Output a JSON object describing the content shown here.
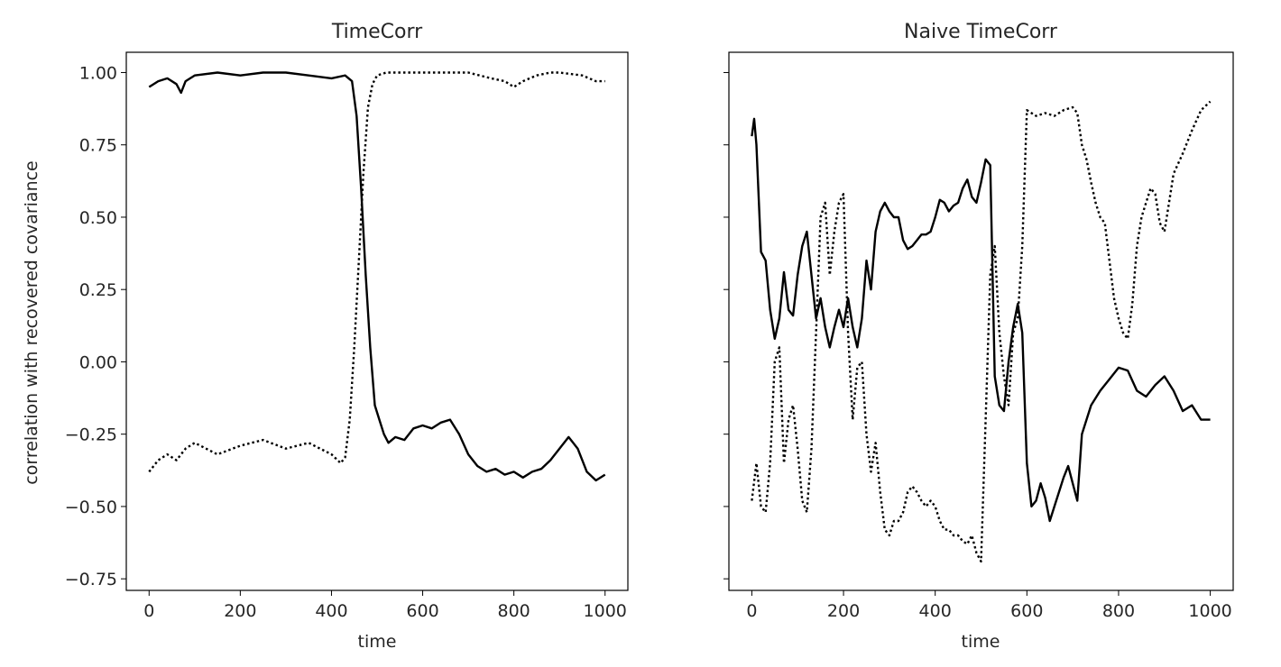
{
  "figure": {
    "panels": [
      {
        "title": "TimeCorr",
        "xlabel": "time",
        "ylabel": "correlation with recovered covariance"
      },
      {
        "title": "Naive TimeCorr",
        "xlabel": "time",
        "ylabel": ""
      }
    ]
  },
  "chart_data": [
    {
      "type": "line",
      "title": "TimeCorr",
      "xlabel": "time",
      "ylabel": "correlation with recovered covariance",
      "xlim": [
        -50,
        1050
      ],
      "ylim": [
        -0.75,
        1.0
      ],
      "xticks": [
        0,
        200,
        400,
        600,
        800,
        1000
      ],
      "yticks": [
        -0.75,
        -0.5,
        -0.25,
        0.0,
        0.25,
        0.5,
        0.75,
        1.0
      ],
      "ytick_labels": [
        "−0.75",
        "−0.50",
        "−0.25",
        "0.00",
        "0.25",
        "0.50",
        "0.75",
        "1.00"
      ],
      "grid": false,
      "series": [
        {
          "style": "solid",
          "color": "#000000",
          "x": [
            0,
            20,
            40,
            60,
            70,
            80,
            90,
            100,
            150,
            200,
            250,
            300,
            350,
            400,
            430,
            445,
            455,
            465,
            475,
            485,
            495,
            505,
            515,
            525,
            540,
            560,
            580,
            600,
            620,
            640,
            660,
            680,
            700,
            720,
            740,
            760,
            780,
            800,
            820,
            840,
            860,
            880,
            900,
            920,
            940,
            960,
            980,
            1000
          ],
          "y": [
            0.95,
            0.97,
            0.98,
            0.96,
            0.93,
            0.97,
            0.98,
            0.99,
            1.0,
            0.99,
            1.0,
            1.0,
            0.99,
            0.98,
            0.99,
            0.97,
            0.85,
            0.6,
            0.3,
            0.05,
            -0.15,
            -0.2,
            -0.25,
            -0.28,
            -0.26,
            -0.27,
            -0.23,
            -0.22,
            -0.23,
            -0.21,
            -0.2,
            -0.25,
            -0.32,
            -0.36,
            -0.38,
            -0.37,
            -0.39,
            -0.38,
            -0.4,
            -0.38,
            -0.37,
            -0.34,
            -0.3,
            -0.26,
            -0.3,
            -0.38,
            -0.41,
            -0.39
          ]
        },
        {
          "style": "dotted",
          "color": "#000000",
          "x": [
            0,
            20,
            40,
            60,
            80,
            100,
            150,
            200,
            250,
            300,
            350,
            400,
            420,
            430,
            440,
            450,
            460,
            470,
            480,
            490,
            500,
            520,
            560,
            600,
            650,
            700,
            750,
            780,
            800,
            820,
            850,
            880,
            900,
            950,
            980,
            1000
          ],
          "y": [
            -0.38,
            -0.34,
            -0.32,
            -0.34,
            -0.3,
            -0.28,
            -0.32,
            -0.29,
            -0.27,
            -0.3,
            -0.28,
            -0.32,
            -0.35,
            -0.33,
            -0.2,
            0.05,
            0.35,
            0.65,
            0.88,
            0.96,
            0.99,
            1.0,
            1.0,
            1.0,
            1.0,
            1.0,
            0.98,
            0.97,
            0.95,
            0.97,
            0.99,
            1.0,
            1.0,
            0.99,
            0.97,
            0.97
          ]
        }
      ]
    },
    {
      "type": "line",
      "title": "Naive TimeCorr",
      "xlabel": "time",
      "ylabel": "",
      "xlim": [
        -50,
        1050
      ],
      "ylim": [
        -0.75,
        1.0
      ],
      "xticks": [
        0,
        200,
        400,
        600,
        800,
        1000
      ],
      "yticks": [
        -0.75,
        -0.5,
        -0.25,
        0.0,
        0.25,
        0.5,
        0.75,
        1.0
      ],
      "grid": false,
      "series": [
        {
          "style": "solid",
          "color": "#000000",
          "x": [
            0,
            5,
            10,
            20,
            30,
            40,
            50,
            60,
            70,
            80,
            90,
            100,
            110,
            120,
            130,
            140,
            150,
            160,
            170,
            180,
            190,
            200,
            210,
            220,
            230,
            240,
            250,
            260,
            270,
            280,
            290,
            300,
            310,
            320,
            330,
            340,
            350,
            360,
            370,
            380,
            390,
            400,
            410,
            420,
            430,
            440,
            450,
            460,
            470,
            480,
            490,
            500,
            510,
            520,
            530,
            540,
            550,
            560,
            570,
            580,
            590,
            600,
            610,
            620,
            630,
            640,
            650,
            660,
            670,
            680,
            690,
            700,
            710,
            720,
            740,
            760,
            780,
            800,
            820,
            840,
            860,
            880,
            900,
            920,
            940,
            960,
            980,
            1000
          ],
          "y": [
            0.78,
            0.84,
            0.75,
            0.38,
            0.35,
            0.18,
            0.08,
            0.15,
            0.31,
            0.18,
            0.16,
            0.3,
            0.4,
            0.45,
            0.3,
            0.15,
            0.22,
            0.12,
            0.05,
            0.12,
            0.18,
            0.12,
            0.22,
            0.12,
            0.05,
            0.15,
            0.35,
            0.25,
            0.45,
            0.52,
            0.55,
            0.52,
            0.5,
            0.5,
            0.42,
            0.39,
            0.4,
            0.42,
            0.44,
            0.44,
            0.45,
            0.5,
            0.56,
            0.55,
            0.52,
            0.54,
            0.55,
            0.6,
            0.63,
            0.57,
            0.55,
            0.62,
            0.7,
            0.68,
            -0.05,
            -0.15,
            -0.17,
            0.0,
            0.12,
            0.2,
            0.1,
            -0.35,
            -0.5,
            -0.48,
            -0.42,
            -0.47,
            -0.55,
            -0.5,
            -0.45,
            -0.4,
            -0.36,
            -0.42,
            -0.48,
            -0.25,
            -0.15,
            -0.1,
            -0.06,
            -0.02,
            -0.03,
            -0.1,
            -0.12,
            -0.08,
            -0.05,
            -0.1,
            -0.17,
            -0.15,
            -0.2,
            -0.2
          ]
        },
        {
          "style": "dotted",
          "color": "#000000",
          "x": [
            0,
            10,
            20,
            30,
            40,
            50,
            60,
            70,
            80,
            90,
            100,
            110,
            120,
            130,
            140,
            150,
            160,
            170,
            180,
            190,
            200,
            210,
            220,
            230,
            240,
            250,
            260,
            270,
            280,
            290,
            300,
            310,
            320,
            330,
            340,
            350,
            360,
            370,
            380,
            390,
            400,
            410,
            420,
            430,
            440,
            450,
            460,
            470,
            480,
            490,
            500,
            510,
            520,
            530,
            540,
            550,
            560,
            570,
            580,
            590,
            600,
            620,
            640,
            660,
            680,
            700,
            710,
            720,
            730,
            740,
            750,
            760,
            770,
            780,
            790,
            800,
            810,
            820,
            830,
            840,
            850,
            860,
            870,
            880,
            890,
            900,
            910,
            920,
            940,
            960,
            980,
            1000
          ],
          "y": [
            -0.48,
            -0.35,
            -0.5,
            -0.52,
            -0.35,
            0.0,
            0.05,
            -0.35,
            -0.2,
            -0.15,
            -0.3,
            -0.48,
            -0.52,
            -0.3,
            0.1,
            0.5,
            0.55,
            0.3,
            0.45,
            0.55,
            0.58,
            0.1,
            -0.2,
            -0.02,
            0.0,
            -0.25,
            -0.38,
            -0.28,
            -0.45,
            -0.58,
            -0.6,
            -0.55,
            -0.55,
            -0.52,
            -0.45,
            -0.43,
            -0.45,
            -0.48,
            -0.5,
            -0.48,
            -0.5,
            -0.55,
            -0.58,
            -0.58,
            -0.6,
            -0.6,
            -0.62,
            -0.63,
            -0.6,
            -0.66,
            -0.69,
            -0.2,
            0.3,
            0.4,
            0.1,
            -0.05,
            -0.15,
            0.1,
            0.15,
            0.4,
            0.87,
            0.85,
            0.86,
            0.85,
            0.87,
            0.88,
            0.86,
            0.75,
            0.7,
            0.62,
            0.55,
            0.5,
            0.48,
            0.35,
            0.22,
            0.15,
            0.1,
            0.08,
            0.2,
            0.4,
            0.5,
            0.55,
            0.6,
            0.58,
            0.48,
            0.45,
            0.55,
            0.65,
            0.72,
            0.8,
            0.87,
            0.9
          ]
        }
      ]
    }
  ]
}
